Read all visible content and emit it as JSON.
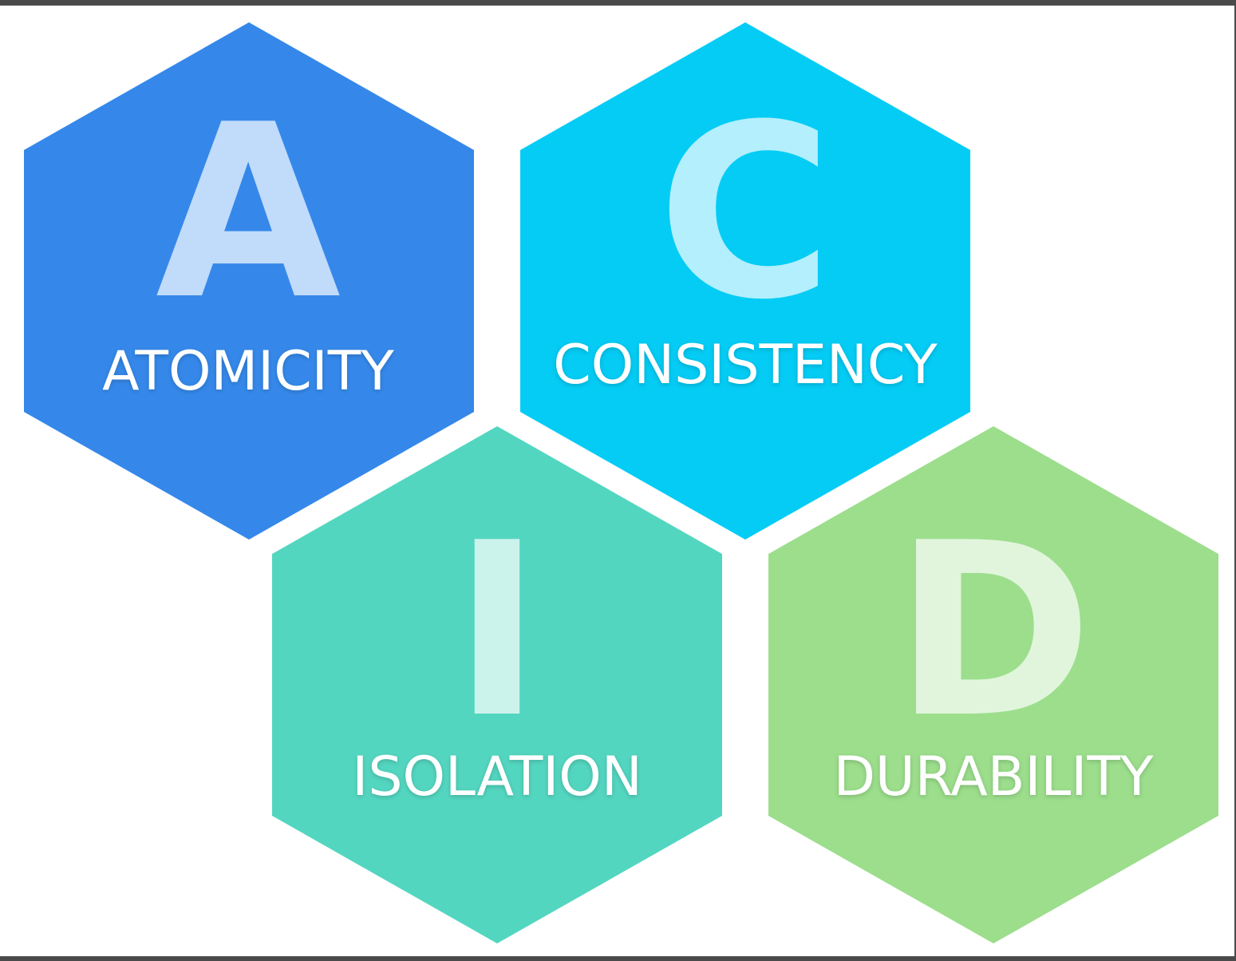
{
  "diagram": {
    "hexagons": [
      {
        "key": "atomicity",
        "letter": "A",
        "word": "ATOMICITY",
        "color": "#3588EA",
        "letter_color": "#C1DBFA"
      },
      {
        "key": "consistency",
        "letter": "C",
        "word": "CONSISTENCY",
        "color": "#04CCF5",
        "letter_color": "#B3EFFC"
      },
      {
        "key": "isolation",
        "letter": "I",
        "word": "ISOLATION",
        "color": "#53D6C0",
        "letter_color": "#CBF3EC"
      },
      {
        "key": "durability",
        "letter": "D",
        "word": "DURABILITY",
        "color": "#9CDE8C",
        "letter_color": "#E1F5DC"
      }
    ]
  }
}
